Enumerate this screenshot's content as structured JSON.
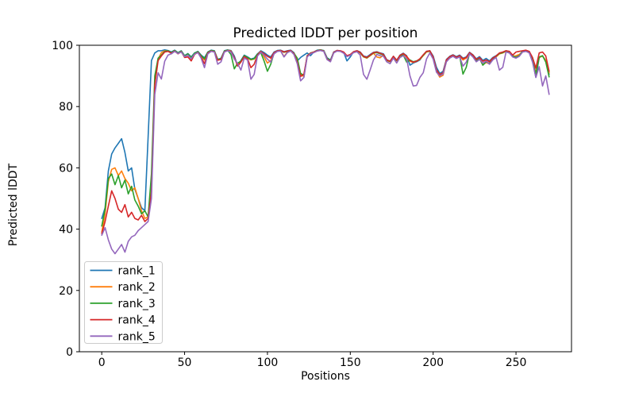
{
  "chart_data": {
    "type": "line",
    "title": "Predicted lDDT per position",
    "xlabel": "Positions",
    "ylabel": "Predicted lDDT",
    "xlim": [
      -13.5,
      283.5
    ],
    "ylim": [
      0,
      100
    ],
    "x_ticks": [
      0,
      50,
      100,
      150,
      200,
      250
    ],
    "y_ticks": [
      0,
      20,
      40,
      60,
      80,
      100
    ],
    "x_start": 0,
    "x_step": 2,
    "grid": false,
    "legend_position": "lower left",
    "series": [
      {
        "name": "rank_1",
        "color": "#1f77b4",
        "values": [
          43.5,
          47,
          59,
          64.5,
          66.5,
          68,
          69.5,
          65,
          59,
          60,
          53,
          50,
          47,
          46,
          70,
          95,
          97.5,
          98.2,
          98.2,
          98.5,
          98.3,
          97.8,
          98.4,
          97.6,
          98.2,
          96.6,
          97.3,
          96.2,
          97.5,
          98,
          96.8,
          95.9,
          97.8,
          98.4,
          98.2,
          95.4,
          95.8,
          98.2,
          98.5,
          98.3,
          96.5,
          93.4,
          95,
          96.8,
          96.2,
          95.5,
          95.8,
          97.2,
          98.2,
          97.6,
          96.8,
          96.2,
          97.8,
          98.3,
          98.4,
          97.9,
          98.2,
          98.4,
          97.6,
          94.9,
          96,
          96.8,
          97.5,
          96.6,
          97.8,
          98.4,
          98.5,
          98.3,
          95.9,
          95.2,
          97.8,
          98.3,
          98.1,
          97.7,
          94.9,
          96.2,
          97.9,
          98.2,
          97.8,
          96.5,
          96.2,
          97,
          97.7,
          97.9,
          97.5,
          97.2,
          95.3,
          94.8,
          96.4,
          95.1,
          96.8,
          97.4,
          96.6,
          93.5,
          94.2,
          94.6,
          95.2,
          96.8,
          98,
          98.2,
          96.5,
          92.8,
          90.8,
          91.5,
          95.4,
          96.4,
          96.9,
          96.3,
          96.8,
          95.8,
          96.2,
          97.7,
          96.9,
          95.6,
          96.3,
          95.1,
          95.7,
          94.9,
          96,
          96.6,
          97.4,
          97.7,
          98.2,
          97.9,
          96.6,
          96.1,
          96.8,
          98.1,
          98.3,
          97.9,
          95,
          89.5,
          96,
          96.5,
          95,
          90.5
        ]
      },
      {
        "name": "rank_2",
        "color": "#ff7f0e",
        "values": [
          39,
          45,
          55.5,
          59.5,
          60,
          57.5,
          59,
          56.5,
          55,
          52.5,
          53.5,
          50,
          46,
          43.5,
          44,
          55,
          88,
          95.5,
          97.6,
          98.2,
          98.1,
          97.5,
          98.2,
          97.4,
          98,
          96.4,
          97,
          95.8,
          97.2,
          97.8,
          96.4,
          95.2,
          97.6,
          98.2,
          98,
          95.2,
          95.5,
          98,
          98.4,
          98.1,
          95.8,
          93.8,
          94.6,
          96.4,
          95.8,
          95.2,
          95.5,
          97,
          98,
          96.2,
          94.2,
          95,
          97.4,
          98.1,
          98.2,
          96.3,
          97.8,
          98.2,
          97.2,
          95.6,
          90.4,
          89.8,
          96.4,
          97.4,
          97.7,
          98.2,
          98.4,
          98.1,
          95.6,
          94.9,
          97.6,
          98.2,
          98,
          97.5,
          96.4,
          96.8,
          97.7,
          98,
          97.5,
          96.2,
          95.8,
          96.6,
          97.4,
          96.2,
          95.9,
          96.8,
          95,
          94.6,
          96.2,
          94.9,
          96.5,
          97.2,
          96.2,
          94.8,
          94.4,
          94.8,
          95.4,
          96.6,
          97.8,
          98,
          95.8,
          91.5,
          89.6,
          90.2,
          94.8,
          96,
          96.6,
          95.9,
          96.4,
          95.2,
          95.8,
          97.4,
          96.4,
          94.8,
          95.6,
          93.6,
          94.4,
          93.9,
          95.4,
          96.2,
          97.2,
          97.5,
          98,
          97.7,
          96.4,
          96.6,
          97,
          97.9,
          98.1,
          97.7,
          95.2,
          91,
          96,
          96.5,
          95,
          91
        ]
      },
      {
        "name": "rank_3",
        "color": "#2ca02c",
        "values": [
          41,
          46.5,
          56.5,
          58,
          54.5,
          57.5,
          53.5,
          56,
          51.5,
          54,
          49.5,
          47.5,
          45,
          46,
          44,
          58,
          90,
          95.8,
          96.8,
          98,
          98.2,
          97.6,
          98.3,
          97.5,
          98.1,
          96.5,
          97.2,
          96,
          97.4,
          97.9,
          96.6,
          95.6,
          97.7,
          98.3,
          98.1,
          95.3,
          95.6,
          98.1,
          98.4,
          97,
          92.3,
          94.2,
          94.8,
          96.6,
          96,
          95.4,
          95.6,
          97.1,
          97.6,
          94.8,
          91.5,
          93.8,
          97.5,
          98.2,
          98.3,
          97.7,
          98,
          98.3,
          97.4,
          95.8,
          90.8,
          90.2,
          96.6,
          97.5,
          97.8,
          98.3,
          98.5,
          98.2,
          95.7,
          95,
          97.7,
          98.2,
          98.1,
          97.6,
          96.5,
          96.9,
          97.8,
          98.1,
          97.6,
          96.3,
          95.9,
          96.7,
          97.5,
          97.6,
          97.2,
          96.9,
          95.1,
          94.7,
          96.3,
          95,
          96.6,
          96.8,
          94.5,
          95.2,
          94.6,
          94.9,
          95.5,
          96.7,
          97.9,
          98.1,
          96,
          91.8,
          90.2,
          90.8,
          95,
          96.2,
          96.7,
          96,
          96.5,
          90.6,
          92.8,
          97.5,
          96.6,
          95,
          95.8,
          93.5,
          94.6,
          94.1,
          95.6,
          96.4,
          97.3,
          97.6,
          98.1,
          97.8,
          96.5,
          96,
          96.6,
          98,
          98.2,
          97.8,
          95.1,
          90.5,
          96.2,
          96.6,
          94.5,
          89.7
        ]
      },
      {
        "name": "rank_4",
        "color": "#d62728",
        "values": [
          38.5,
          42.5,
          47.5,
          52.5,
          50,
          46.5,
          45.5,
          48,
          44,
          45.5,
          43.5,
          43,
          44.5,
          42.5,
          43.5,
          52,
          87,
          95,
          96.5,
          97.8,
          98,
          97.4,
          98.1,
          97.2,
          97.9,
          96,
          96.2,
          94.9,
          97,
          97.7,
          96.2,
          94,
          97.5,
          98.1,
          97.9,
          95.1,
          95.4,
          97.9,
          98.3,
          98,
          96,
          93.2,
          94.5,
          96.3,
          95.6,
          92.7,
          93.8,
          96.8,
          97.9,
          97.2,
          96.4,
          95.8,
          97.6,
          98.2,
          98.3,
          97.8,
          98.1,
          98.3,
          97.3,
          94.5,
          89.8,
          90.6,
          96.5,
          97.4,
          97.8,
          98.2,
          98.4,
          98.1,
          95.5,
          94.8,
          97.7,
          98.3,
          98.2,
          97.8,
          96.6,
          97,
          97.9,
          98.2,
          97.7,
          96.4,
          96,
          96.8,
          97.6,
          97.8,
          97.4,
          97,
          95.2,
          94.8,
          96.4,
          95.1,
          96.7,
          97.3,
          96.4,
          95,
          94.5,
          94.8,
          95.6,
          96.9,
          98,
          98.2,
          96.2,
          92,
          90.5,
          91,
          95.2,
          96.3,
          96.8,
          96.1,
          96.6,
          95.6,
          96,
          97.6,
          96.8,
          95.4,
          96,
          94.8,
          95.2,
          94.6,
          95.8,
          96.5,
          97.5,
          97.8,
          98.2,
          98,
          96.8,
          97.8,
          98,
          98.2,
          98.4,
          98,
          96,
          92.5,
          97.5,
          97.8,
          96.5,
          91.5
        ]
      },
      {
        "name": "rank_5",
        "color": "#9467bd",
        "values": [
          38,
          40.5,
          36.5,
          33.5,
          32,
          33.5,
          35,
          32.5,
          36,
          37.5,
          38,
          39.5,
          40.5,
          41.5,
          42.5,
          50,
          84,
          91,
          89,
          94.8,
          96.8,
          97.2,
          98,
          97.3,
          97.8,
          96.3,
          96.8,
          95.6,
          97.1,
          97.6,
          95.8,
          92.7,
          97.2,
          98,
          97.8,
          93.8,
          94.6,
          97.8,
          98.2,
          97.8,
          95.5,
          94,
          91.9,
          95.8,
          95.2,
          88.9,
          90.5,
          96.5,
          97.7,
          96.8,
          95.5,
          94.5,
          97.2,
          98,
          98.1,
          96.2,
          97.6,
          98.1,
          97,
          94,
          88.4,
          89.5,
          96.2,
          97.2,
          97.6,
          98.1,
          98.3,
          98,
          95.3,
          94.6,
          97.5,
          98.1,
          98,
          97.4,
          96.3,
          96.7,
          97.6,
          97.9,
          96.8,
          90.5,
          88.9,
          92,
          95.2,
          97,
          96.6,
          96.4,
          94.6,
          94,
          95.8,
          94.2,
          96,
          96.6,
          95.6,
          90,
          86.7,
          86.9,
          89.5,
          91,
          95.5,
          97.5,
          95.5,
          91.2,
          90,
          90.6,
          94.6,
          95.8,
          96.4,
          95.7,
          96.2,
          93.2,
          94.5,
          97.2,
          96.2,
          94.6,
          95.4,
          94.2,
          94.8,
          93.8,
          95.2,
          96,
          91.9,
          92.8,
          97.8,
          97.5,
          96.2,
          95.8,
          96.4,
          97.8,
          98,
          97.5,
          94.5,
          89.5,
          93,
          86.7,
          90,
          84
        ]
      }
    ]
  }
}
